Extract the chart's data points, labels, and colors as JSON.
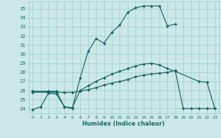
{
  "xlabel": "Humidex (Indice chaleur)",
  "xlim": [
    -0.5,
    23.5
  ],
  "ylim": [
    23.5,
    35.8
  ],
  "yticks": [
    24,
    25,
    26,
    27,
    28,
    29,
    30,
    31,
    32,
    33,
    34,
    35
  ],
  "bg_color": "#cce8e8",
  "line_color": "#1a6666",
  "grid_color": "#99cccc",
  "line1_x": [
    0,
    1,
    2,
    3,
    4,
    5,
    6,
    7,
    8,
    9,
    10,
    11,
    12,
    13,
    14,
    15,
    16,
    17,
    18
  ],
  "line1_y": [
    23.9,
    24.2,
    25.7,
    25.6,
    24.2,
    24.0,
    27.4,
    30.3,
    31.7,
    31.2,
    32.4,
    33.2,
    34.6,
    35.1,
    35.3,
    35.3,
    35.3,
    33.1,
    33.3
  ],
  "line2_x": [
    0,
    2,
    3,
    4,
    5,
    6,
    7,
    8,
    9,
    10,
    11,
    12,
    13,
    14,
    15,
    16,
    17,
    18,
    19,
    20,
    21,
    22,
    23
  ],
  "line2_y": [
    25.8,
    25.8,
    25.8,
    25.8,
    25.8,
    25.9,
    26.1,
    26.3,
    26.6,
    26.8,
    27.0,
    27.2,
    27.5,
    27.7,
    27.8,
    27.9,
    28.0,
    28.2,
    24.0,
    24.0,
    24.0,
    24.0,
    24.0
  ],
  "line3_x": [
    0,
    2,
    3,
    4,
    5,
    6,
    7,
    8,
    9,
    10,
    11,
    12,
    13,
    14,
    15,
    16,
    17,
    18,
    21,
    22,
    23
  ],
  "line3_y": [
    25.9,
    25.9,
    25.9,
    24.2,
    24.1,
    26.0,
    26.5,
    27.0,
    27.4,
    27.8,
    28.1,
    28.4,
    28.7,
    28.9,
    29.0,
    28.8,
    28.4,
    28.1,
    27.0,
    26.9,
    24.0
  ],
  "line4_x": [
    0,
    2
  ],
  "line4_y": [
    25.9,
    25.8
  ]
}
